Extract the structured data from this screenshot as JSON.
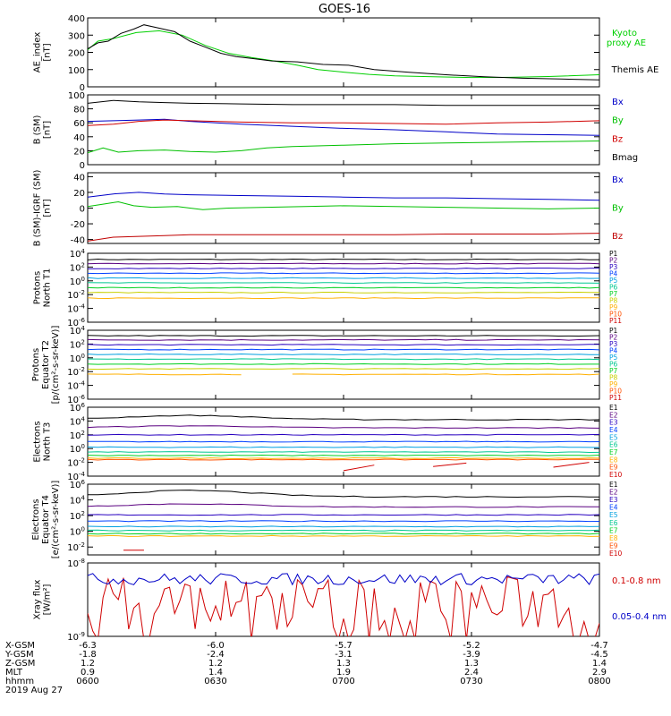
{
  "title": "GOES-16",
  "chart_data": [
    {
      "type": "line",
      "ylabel": [
        "AE_index",
        "[nT]"
      ],
      "yscale": "linear",
      "ylim": [
        0,
        400
      ],
      "yticks": [
        "0",
        "100",
        "200",
        "300",
        "400"
      ],
      "series": [
        {
          "name": "Kyoto",
          "name2": "proxy AE",
          "color": "#00d000",
          "x": [
            0,
            4,
            10,
            19,
            28,
            37,
            46,
            55,
            64,
            73,
            82,
            90,
            100,
            110,
            120,
            135,
            150,
            165,
            180,
            200
          ],
          "y": [
            215,
            265,
            280,
            315,
            325,
            300,
            240,
            195,
            170,
            150,
            125,
            100,
            85,
            72,
            64,
            58,
            54,
            55,
            60,
            70
          ]
        },
        {
          "name": "Themis AE",
          "color": "#000000",
          "x": [
            0,
            4,
            8,
            13,
            18,
            22,
            28,
            34,
            40,
            46,
            52,
            58,
            64,
            72,
            82,
            92,
            102,
            112,
            125,
            140,
            155,
            170,
            185,
            200
          ],
          "y": [
            220,
            255,
            265,
            310,
            335,
            360,
            340,
            320,
            265,
            230,
            195,
            175,
            165,
            150,
            145,
            130,
            125,
            100,
            85,
            70,
            58,
            50,
            45,
            40
          ]
        }
      ]
    },
    {
      "type": "line",
      "ylabel": [
        "B (SM)",
        "[nT]"
      ],
      "yscale": "linear",
      "ylim": [
        0,
        100
      ],
      "yticks": [
        "0",
        "20",
        "40",
        "60",
        "80",
        "100"
      ],
      "series": [
        {
          "name": "Bx",
          "color": "#0000c8",
          "x": [
            0,
            10,
            20,
            30,
            40,
            60,
            80,
            100,
            120,
            140,
            160,
            180,
            200
          ],
          "y": [
            62,
            63,
            64,
            65,
            62,
            58,
            55,
            52,
            50,
            47,
            44,
            43,
            42
          ]
        },
        {
          "name": "By",
          "color": "#00c000",
          "x": [
            0,
            6,
            12,
            20,
            30,
            40,
            50,
            60,
            70,
            80,
            100,
            120,
            140,
            160,
            180,
            200
          ],
          "y": [
            17,
            24,
            18,
            20,
            21,
            19,
            18,
            20,
            24,
            26,
            28,
            30,
            31,
            32,
            33,
            34
          ]
        },
        {
          "name": "Bz",
          "color": "#d00000",
          "x": [
            0,
            10,
            20,
            30,
            40,
            60,
            80,
            100,
            120,
            140,
            160,
            180,
            200
          ],
          "y": [
            56,
            58,
            62,
            64,
            63,
            61,
            60,
            60,
            59,
            58,
            60,
            61,
            63
          ]
        },
        {
          "name": "Bmag",
          "color": "#000000",
          "x": [
            0,
            10,
            20,
            30,
            40,
            60,
            80,
            100,
            120,
            140,
            160,
            180,
            200
          ],
          "y": [
            88,
            92,
            90,
            89,
            88,
            87,
            86,
            86,
            86,
            85,
            85,
            85,
            85
          ]
        }
      ]
    },
    {
      "type": "line",
      "ylabel": [
        "B (SM)-IGRF (SM)",
        "[nT]"
      ],
      "yscale": "linear",
      "ylim": [
        -45,
        45
      ],
      "yticks": [
        "-40",
        "-20",
        "0",
        "20",
        "40"
      ],
      "tickvals": [
        -40,
        -20,
        0,
        20,
        40
      ],
      "series": [
        {
          "name": "Bx",
          "color": "#0000c8",
          "x": [
            0,
            10,
            20,
            30,
            40,
            60,
            80,
            100,
            120,
            140,
            160,
            180,
            200
          ],
          "y": [
            14,
            18,
            20,
            18,
            17,
            16,
            15,
            14,
            13,
            13,
            12,
            11,
            10
          ]
        },
        {
          "name": "By",
          "color": "#00c000",
          "x": [
            0,
            6,
            12,
            18,
            25,
            35,
            45,
            55,
            70,
            85,
            100,
            120,
            140,
            160,
            180,
            200
          ],
          "y": [
            2,
            5,
            8,
            3,
            1,
            2,
            -2,
            0,
            1,
            2,
            3,
            2,
            1,
            0,
            -1,
            0
          ]
        },
        {
          "name": "Bz",
          "color": "#c00000",
          "x": [
            0,
            10,
            20,
            30,
            40,
            60,
            80,
            100,
            120,
            140,
            160,
            180,
            200
          ],
          "y": [
            -42,
            -37,
            -36,
            -35,
            -34,
            -34,
            -34,
            -34,
            -34,
            -33,
            -33,
            -33,
            -32
          ]
        }
      ]
    },
    {
      "type": "line",
      "ylabel": [
        "Protons",
        "North T1"
      ],
      "yscale": "log",
      "ylim": [
        -6,
        4
      ],
      "yticks": [
        "10^4",
        "10^2",
        "10^0",
        "10^-2",
        "10^-4",
        "10^-6"
      ],
      "tickvals": [
        4,
        2,
        0,
        -2,
        -4,
        -6
      ],
      "series": [
        {
          "name": "P1",
          "color": "#000000",
          "base": 3.1
        },
        {
          "name": "P2",
          "color": "#5a0080",
          "base": 2.5
        },
        {
          "name": "P3",
          "color": "#2800c0",
          "base": 1.8
        },
        {
          "name": "P4",
          "color": "#0040ff",
          "base": 1.1
        },
        {
          "name": "P5",
          "color": "#00a0e0",
          "base": 0.4
        },
        {
          "name": "P6",
          "color": "#00c890",
          "base": -0.3
        },
        {
          "name": "P7",
          "color": "#00d020",
          "base": -1.0
        },
        {
          "name": "P8",
          "color": "#c8d000",
          "base": -1.7
        },
        {
          "name": "P9",
          "color": "#ffb000",
          "base": -2.5
        },
        {
          "name": "P10",
          "color": "#ff5000",
          "base": null
        },
        {
          "name": "P11",
          "color": "#d00000",
          "base": null
        }
      ]
    },
    {
      "type": "line",
      "ylabel": [
        "Protons",
        "Equator T2",
        "[p/(cm²-s-sr-keV)]"
      ],
      "yscale": "log",
      "ylim": [
        -6,
        4
      ],
      "yticks": [
        "10^4",
        "10^2",
        "10^0",
        "10^-2",
        "10^-4",
        "10^-6"
      ],
      "tickvals": [
        4,
        2,
        0,
        -2,
        -4,
        -6
      ],
      "series": [
        {
          "name": "P1",
          "color": "#000000",
          "base": 3.2
        },
        {
          "name": "P2",
          "color": "#5a0080",
          "base": 2.6
        },
        {
          "name": "P3",
          "color": "#2800c0",
          "base": 1.9
        },
        {
          "name": "P4",
          "color": "#0040ff",
          "base": 1.2
        },
        {
          "name": "P5",
          "color": "#00a0e0",
          "base": 0.5
        },
        {
          "name": "P6",
          "color": "#00c890",
          "base": -0.2
        },
        {
          "name": "P7",
          "color": "#00d020",
          "base": -0.9
        },
        {
          "name": "P8",
          "color": "#c8d000",
          "base": -1.6
        },
        {
          "name": "P9",
          "color": "#ffb000",
          "base": -2.4,
          "gap": [
            62,
            80
          ]
        },
        {
          "name": "P10",
          "color": "#ff5000",
          "base": null
        },
        {
          "name": "P11",
          "color": "#d00000",
          "base": null
        }
      ]
    },
    {
      "type": "line",
      "ylabel": [
        "Electrons",
        "North T3"
      ],
      "yscale": "log",
      "ylim": [
        -4,
        6
      ],
      "yticks": [
        "10^6",
        "10^4",
        "10^2",
        "10^0",
        "10^-2",
        "10^-4"
      ],
      "tickvals": [
        6,
        4,
        2,
        0,
        -2,
        -4
      ],
      "series": [
        {
          "name": "E1",
          "color": "#000000",
          "base": 4.2,
          "bump": 0.6
        },
        {
          "name": "E2",
          "color": "#5a0080",
          "base": 3.0,
          "bump": 0.3
        },
        {
          "name": "E3",
          "color": "#2800c0",
          "base": 2.0
        },
        {
          "name": "E4",
          "color": "#0040ff",
          "base": 1.0
        },
        {
          "name": "E5",
          "color": "#00a0e0",
          "base": 0.2
        },
        {
          "name": "E6",
          "color": "#00c890",
          "base": -0.5
        },
        {
          "name": "E7",
          "color": "#00d020",
          "base": -1.0
        },
        {
          "name": "E8",
          "color": "#ffb000",
          "base": -1.4
        },
        {
          "name": "E9",
          "color": "#ff5000",
          "base": -1.6
        },
        {
          "name": "E10",
          "color": "#d00000",
          "base": null,
          "segments": [
            [
              [
                100,
                -3.2
              ],
              [
                112,
                -2.4
              ]
            ],
            [
              [
                135,
                -2.6
              ],
              [
                148,
                -2.1
              ]
            ],
            [
              [
                182,
                -2.7
              ],
              [
                196,
                -2.0
              ]
            ]
          ]
        }
      ]
    },
    {
      "type": "line",
      "ylabel": [
        "Electrons",
        "Equator T4",
        "[e/(cm²-s-sr-keV)]"
      ],
      "yscale": "log",
      "ylim": [
        -3,
        6
      ],
      "yticks": [
        "10^6",
        "10^4",
        "10^2",
        "10^0",
        "10^-2"
      ],
      "tickvals": [
        6,
        4,
        2,
        0,
        -2
      ],
      "series": [
        {
          "name": "E1",
          "color": "#000000",
          "base": 4.4,
          "bump": 0.8
        },
        {
          "name": "E2",
          "color": "#5a0080",
          "base": 3.1,
          "bump": 0.4
        },
        {
          "name": "E3",
          "color": "#2800c0",
          "base": 2.1
        },
        {
          "name": "E4",
          "color": "#0040ff",
          "base": 1.3
        },
        {
          "name": "E5",
          "color": "#00a0e0",
          "base": 0.6
        },
        {
          "name": "E6",
          "color": "#00c890",
          "base": 0.1
        },
        {
          "name": "E7",
          "color": "#00d020",
          "base": -0.3
        },
        {
          "name": "E8",
          "color": "#ffb000",
          "base": -0.6
        },
        {
          "name": "E9",
          "color": "#ff5000",
          "base": null
        },
        {
          "name": "E10",
          "color": "#d00000",
          "base": null,
          "segments": [
            [
              [
                14,
                -2.4
              ],
              [
                22,
                -2.4
              ]
            ]
          ]
        }
      ]
    },
    {
      "type": "line",
      "ylabel": [
        "Xray flux",
        "[W/m²]"
      ],
      "yscale": "log",
      "ylim": [
        -9,
        -8
      ],
      "yticks": [
        "10^-8",
        "10^-9"
      ],
      "tickvals": [
        -8,
        -9
      ],
      "series": [
        {
          "name": "0.1-0.8 nm",
          "color": "#d00000",
          "noisy": true,
          "base": -8.55,
          "amp": 0.38
        },
        {
          "name": "0.05-0.4 nm",
          "color": "#0000c8",
          "noisy": true,
          "base": -8.22,
          "amp": 0.08
        }
      ]
    }
  ],
  "x_axis": {
    "row_labels": [
      "X-GSM",
      "Y-GSM",
      "Z-GSM",
      "MLT",
      "hhmm",
      "2019 Aug 27"
    ],
    "columns": [
      {
        "x": 0,
        "values": [
          "-6.3",
          "-1.8",
          "1.2",
          "0.9",
          "0600"
        ]
      },
      {
        "x": 50,
        "values": [
          "-6.0",
          "-2.4",
          "1.2",
          "1.4",
          "0630"
        ]
      },
      {
        "x": 100,
        "values": [
          "-5.7",
          "-3.1",
          "1.3",
          "1.9",
          "0700"
        ]
      },
      {
        "x": 150,
        "values": [
          "-5.2",
          "-3.9",
          "1.3",
          "2.4",
          "0730"
        ]
      },
      {
        "x": 200,
        "values": [
          "-4.7",
          "-4.5",
          "1.4",
          "2.9",
          "0800"
        ]
      }
    ]
  }
}
